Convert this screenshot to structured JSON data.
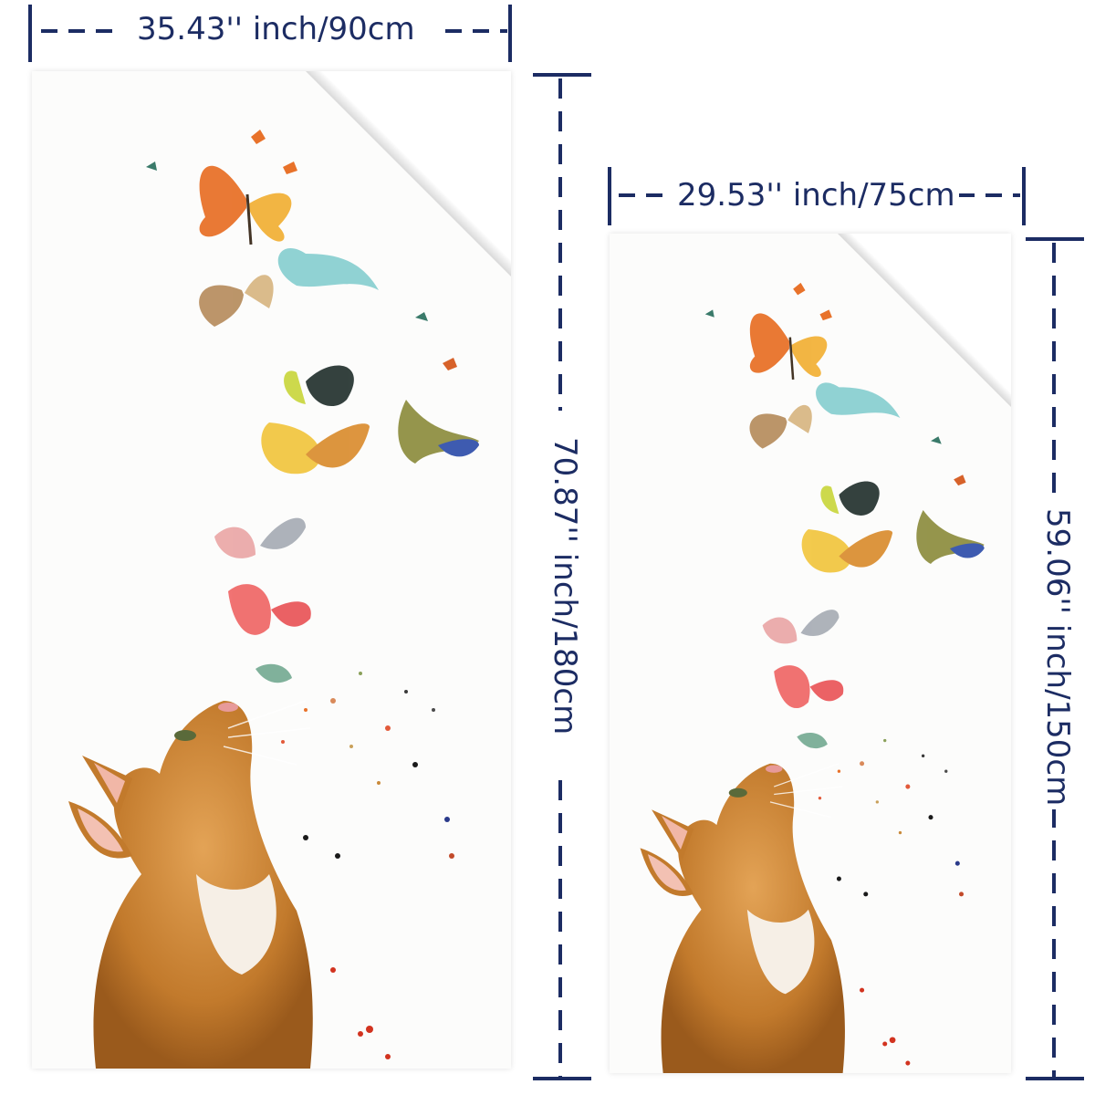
{
  "large_towel": {
    "width_label": "35.43'' inch/90cm",
    "height_label": "70.87'' inch/180cm"
  },
  "small_towel": {
    "width_label": "29.53'' inch/75cm",
    "height_label": "59.06'' inch/150cm"
  },
  "colors": {
    "dimension_line": "#1c2c63",
    "towel": "#fcfcfb",
    "cat_fur": "#c9822f"
  },
  "artwork": {
    "subject": "cat-looking-up-at-butterflies-icon"
  }
}
